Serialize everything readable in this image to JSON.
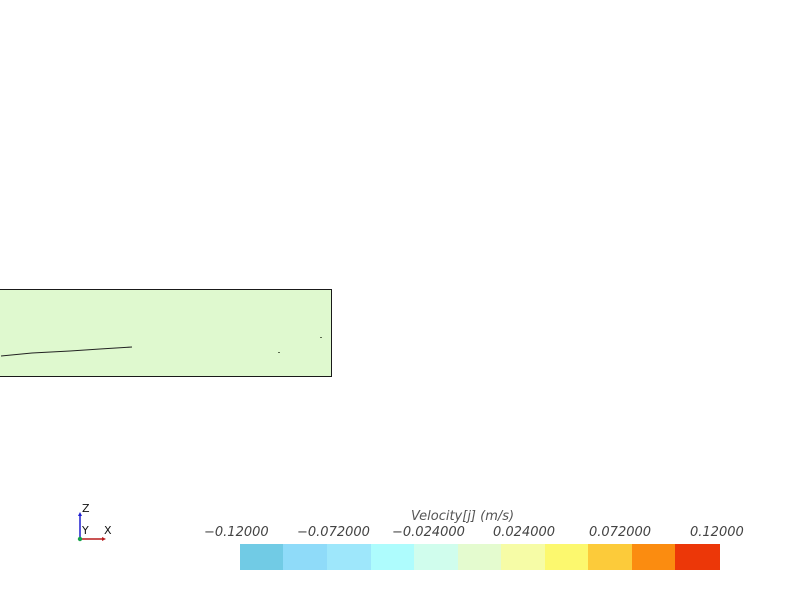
{
  "legend": {
    "title": "Velocity[j] (m/s)",
    "ticks": [
      "−0.12000",
      "−0.072000",
      "−0.024000",
      "0.024000",
      "0.072000",
      "0.12000"
    ],
    "colors": [
      "#71cbe5",
      "#8fdbf9",
      "#9ee7fb",
      "#aefcfd",
      "#d0fded",
      "#e4fbcf",
      "#f6fca6",
      "#fcf86e",
      "#fccb3a",
      "#fb8c10",
      "#ec3708"
    ]
  },
  "axes": {
    "z": "Z",
    "y": "Y",
    "x": "X",
    "colors": {
      "z": "#1f1fcf",
      "y": "#16a34a",
      "x": "#b91c1c"
    }
  },
  "domain": {
    "fill": "#dff9cf",
    "outline": "#1a1a1a"
  }
}
